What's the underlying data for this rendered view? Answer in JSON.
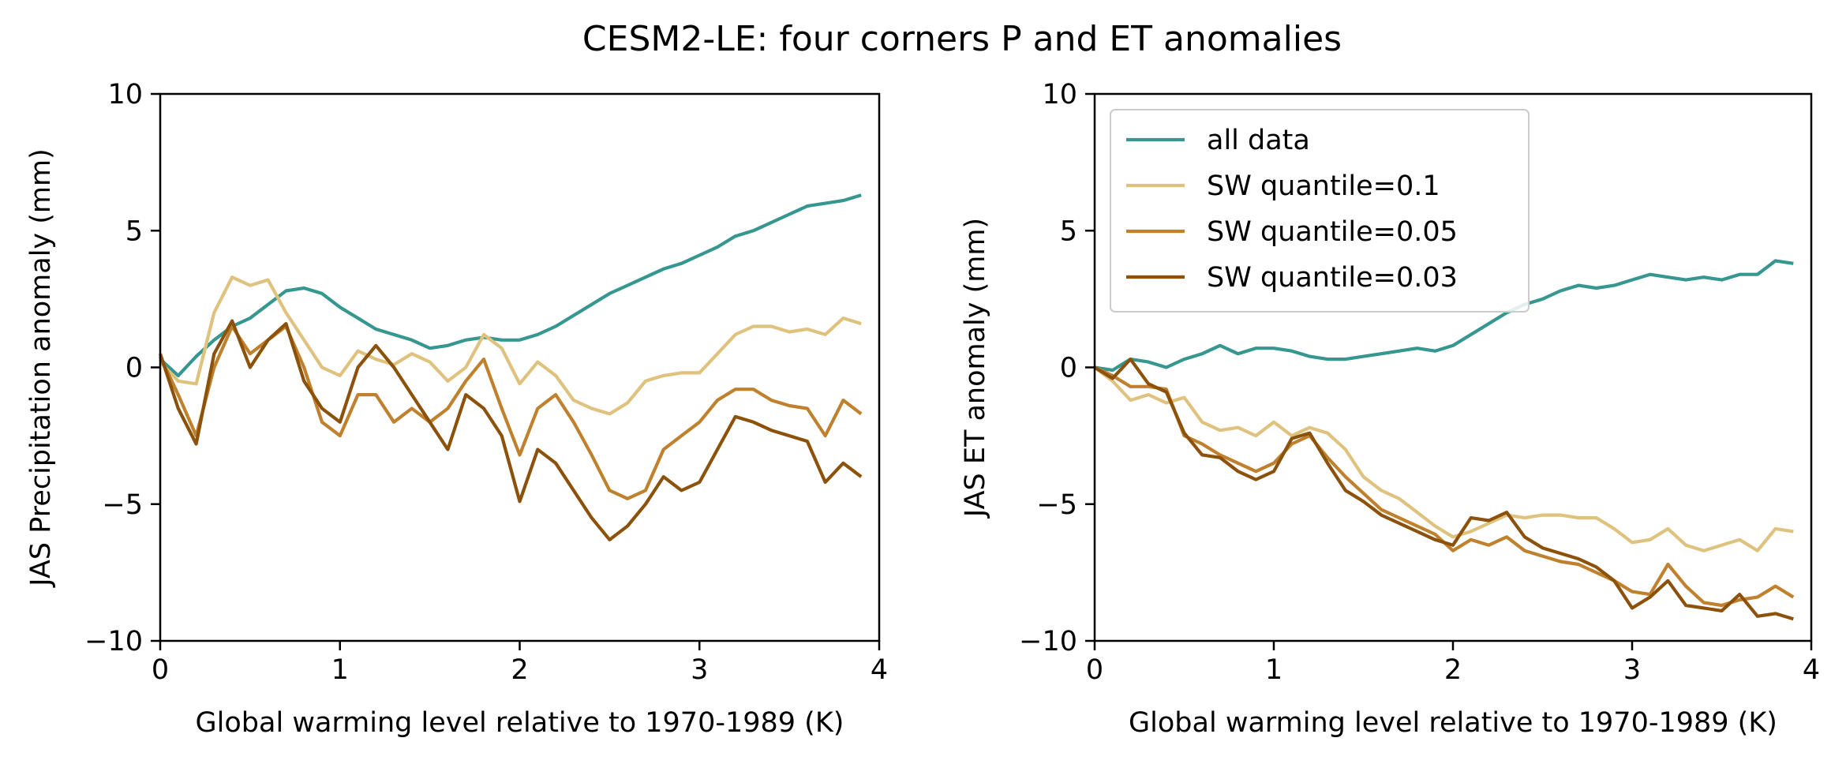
{
  "figure": {
    "suptitle": "CESM2-LE: four corners P and ET anomalies"
  },
  "colors": {
    "all_data": "#35978f",
    "q010": "#dfc27d",
    "q005": "#bf812d",
    "q003": "#8c510a"
  },
  "chart_data": [
    {
      "type": "line",
      "title": "",
      "xlabel": "Global warming level relative to 1970-1989 (K)",
      "ylabel": "JAS Precipitation anomaly (mm)",
      "xlim": [
        0,
        4
      ],
      "ylim": [
        -10,
        10
      ],
      "xticks": [
        "0",
        "1",
        "2",
        "3",
        "4"
      ],
      "yticks": [
        "−10",
        "−5",
        "0",
        "5",
        "10"
      ],
      "xtick_values": [
        0,
        1,
        2,
        3,
        4
      ],
      "ytick_values": [
        -10,
        -5,
        0,
        5,
        10
      ],
      "grid": false,
      "legend": null,
      "series": [
        {
          "name": "all data",
          "color": "#35978f",
          "x": [
            0.0,
            0.1,
            0.2,
            0.3,
            0.4,
            0.5,
            0.6,
            0.7,
            0.8,
            0.9,
            1.0,
            1.1,
            1.2,
            1.3,
            1.4,
            1.5,
            1.6,
            1.7,
            1.8,
            1.9,
            2.0,
            2.1,
            2.2,
            2.3,
            2.4,
            2.5,
            2.6,
            2.7,
            2.8,
            2.9,
            3.0,
            3.1,
            3.2,
            3.3,
            3.4,
            3.5,
            3.6,
            3.7,
            3.8,
            3.9
          ],
          "y": [
            0.3,
            -0.3,
            0.4,
            1.0,
            1.5,
            1.8,
            2.3,
            2.8,
            2.9,
            2.7,
            2.2,
            1.8,
            1.4,
            1.2,
            1.0,
            0.7,
            0.8,
            1.0,
            1.1,
            1.0,
            1.0,
            1.2,
            1.5,
            1.9,
            2.3,
            2.7,
            3.0,
            3.3,
            3.6,
            3.8,
            4.1,
            4.4,
            4.8,
            5.0,
            5.3,
            5.6,
            5.9,
            6.0,
            6.1,
            6.3
          ]
        },
        {
          "name": "SW quantile=0.1",
          "color": "#dfc27d",
          "x": [
            0.0,
            0.1,
            0.2,
            0.3,
            0.4,
            0.5,
            0.6,
            0.7,
            0.8,
            0.9,
            1.0,
            1.1,
            1.2,
            1.3,
            1.4,
            1.5,
            1.6,
            1.7,
            1.8,
            1.9,
            2.0,
            2.1,
            2.2,
            2.3,
            2.4,
            2.5,
            2.6,
            2.7,
            2.8,
            2.9,
            3.0,
            3.1,
            3.2,
            3.3,
            3.4,
            3.5,
            3.6,
            3.7,
            3.8,
            3.9
          ],
          "y": [
            0.2,
            -0.5,
            -0.6,
            2.0,
            3.3,
            3.0,
            3.2,
            2.0,
            1.0,
            0.0,
            -0.3,
            0.6,
            0.3,
            0.1,
            0.5,
            0.2,
            -0.5,
            0.0,
            1.2,
            0.7,
            -0.6,
            0.2,
            -0.3,
            -1.2,
            -1.5,
            -1.7,
            -1.3,
            -0.5,
            -0.3,
            -0.2,
            -0.2,
            0.5,
            1.2,
            1.5,
            1.5,
            1.3,
            1.4,
            1.2,
            1.8,
            1.6
          ]
        },
        {
          "name": "SW quantile=0.05",
          "color": "#bf812d",
          "x": [
            0.0,
            0.1,
            0.2,
            0.3,
            0.4,
            0.5,
            0.6,
            0.7,
            0.8,
            0.9,
            1.0,
            1.1,
            1.2,
            1.3,
            1.4,
            1.5,
            1.6,
            1.7,
            1.8,
            1.9,
            2.0,
            2.1,
            2.2,
            2.3,
            2.4,
            2.5,
            2.6,
            2.7,
            2.8,
            2.9,
            3.0,
            3.1,
            3.2,
            3.3,
            3.4,
            3.5,
            3.6,
            3.7,
            3.8,
            3.9
          ],
          "y": [
            0.4,
            -1.0,
            -2.5,
            0.0,
            1.5,
            0.5,
            1.0,
            1.5,
            0.0,
            -2.0,
            -2.5,
            -1.0,
            -1.0,
            -2.0,
            -1.5,
            -2.0,
            -1.5,
            -0.5,
            0.3,
            -1.5,
            -3.2,
            -1.5,
            -1.0,
            -2.0,
            -3.2,
            -4.5,
            -4.8,
            -4.5,
            -3.0,
            -2.5,
            -2.0,
            -1.2,
            -0.8,
            -0.8,
            -1.2,
            -1.4,
            -1.5,
            -2.5,
            -1.2,
            -1.7
          ]
        },
        {
          "name": "SW quantile=0.03",
          "color": "#8c510a",
          "x": [
            0.0,
            0.1,
            0.2,
            0.3,
            0.4,
            0.5,
            0.6,
            0.7,
            0.8,
            0.9,
            1.0,
            1.1,
            1.2,
            1.3,
            1.4,
            1.5,
            1.6,
            1.7,
            1.8,
            1.9,
            2.0,
            2.1,
            2.2,
            2.3,
            2.4,
            2.5,
            2.6,
            2.7,
            2.8,
            2.9,
            3.0,
            3.1,
            3.2,
            3.3,
            3.4,
            3.5,
            3.6,
            3.7,
            3.8,
            3.9
          ],
          "y": [
            0.5,
            -1.5,
            -2.8,
            0.5,
            1.7,
            0.0,
            1.0,
            1.6,
            -0.5,
            -1.5,
            -2.0,
            0.0,
            0.8,
            0.0,
            -1.0,
            -2.0,
            -3.0,
            -1.0,
            -1.5,
            -2.5,
            -4.9,
            -3.0,
            -3.5,
            -4.5,
            -5.5,
            -6.3,
            -5.8,
            -5.0,
            -4.0,
            -4.5,
            -4.2,
            -3.0,
            -1.8,
            -2.0,
            -2.3,
            -2.5,
            -2.7,
            -4.2,
            -3.5,
            -4.0
          ]
        }
      ]
    },
    {
      "type": "line",
      "title": "",
      "xlabel": "Global warming level relative to 1970-1989 (K)",
      "ylabel": "JAS ET anomaly (mm)",
      "xlim": [
        0,
        4
      ],
      "ylim": [
        -10,
        10
      ],
      "xticks": [
        "0",
        "1",
        "2",
        "3",
        "4"
      ],
      "yticks": [
        "−10",
        "−5",
        "0",
        "5",
        "10"
      ],
      "xtick_values": [
        0,
        1,
        2,
        3,
        4
      ],
      "ytick_values": [
        -10,
        -5,
        0,
        5,
        10
      ],
      "grid": false,
      "legend": "upper left",
      "series": [
        {
          "name": "all data",
          "color": "#35978f",
          "x": [
            0.0,
            0.1,
            0.2,
            0.3,
            0.4,
            0.5,
            0.6,
            0.7,
            0.8,
            0.9,
            1.0,
            1.1,
            1.2,
            1.3,
            1.4,
            1.5,
            1.6,
            1.7,
            1.8,
            1.9,
            2.0,
            2.1,
            2.2,
            2.3,
            2.4,
            2.5,
            2.6,
            2.7,
            2.8,
            2.9,
            3.0,
            3.1,
            3.2,
            3.3,
            3.4,
            3.5,
            3.6,
            3.7,
            3.8,
            3.9
          ],
          "y": [
            0.0,
            -0.1,
            0.3,
            0.2,
            0.0,
            0.3,
            0.5,
            0.8,
            0.5,
            0.7,
            0.7,
            0.6,
            0.4,
            0.3,
            0.3,
            0.4,
            0.5,
            0.6,
            0.7,
            0.6,
            0.8,
            1.2,
            1.6,
            2.0,
            2.3,
            2.5,
            2.8,
            3.0,
            2.9,
            3.0,
            3.2,
            3.4,
            3.3,
            3.2,
            3.3,
            3.2,
            3.4,
            3.4,
            3.9,
            3.8
          ]
        },
        {
          "name": "SW quantile=0.1",
          "color": "#dfc27d",
          "x": [
            0.0,
            0.1,
            0.2,
            0.3,
            0.4,
            0.5,
            0.6,
            0.7,
            0.8,
            0.9,
            1.0,
            1.1,
            1.2,
            1.3,
            1.4,
            1.5,
            1.6,
            1.7,
            1.8,
            1.9,
            2.0,
            2.1,
            2.2,
            2.3,
            2.4,
            2.5,
            2.6,
            2.7,
            2.8,
            2.9,
            3.0,
            3.1,
            3.2,
            3.3,
            3.4,
            3.5,
            3.6,
            3.7,
            3.8,
            3.9
          ],
          "y": [
            0.0,
            -0.5,
            -1.2,
            -1.0,
            -1.3,
            -1.1,
            -2.0,
            -2.3,
            -2.2,
            -2.5,
            -2.0,
            -2.5,
            -2.2,
            -2.4,
            -3.0,
            -4.0,
            -4.5,
            -4.8,
            -5.3,
            -5.8,
            -6.2,
            -6.0,
            -5.7,
            -5.4,
            -5.5,
            -5.4,
            -5.4,
            -5.5,
            -5.5,
            -5.9,
            -6.4,
            -6.3,
            -5.9,
            -6.5,
            -6.7,
            -6.5,
            -6.3,
            -6.7,
            -5.9,
            -6.0
          ]
        },
        {
          "name": "SW quantile=0.05",
          "color": "#bf812d",
          "x": [
            0.0,
            0.1,
            0.2,
            0.3,
            0.4,
            0.5,
            0.6,
            0.7,
            0.8,
            0.9,
            1.0,
            1.1,
            1.2,
            1.3,
            1.4,
            1.5,
            1.6,
            1.7,
            1.8,
            1.9,
            2.0,
            2.1,
            2.2,
            2.3,
            2.4,
            2.5,
            2.6,
            2.7,
            2.8,
            2.9,
            3.0,
            3.1,
            3.2,
            3.3,
            3.4,
            3.5,
            3.6,
            3.7,
            3.8,
            3.9
          ],
          "y": [
            0.0,
            -0.3,
            -0.7,
            -0.7,
            -0.8,
            -2.5,
            -2.8,
            -3.2,
            -3.5,
            -3.8,
            -3.5,
            -2.8,
            -2.5,
            -3.3,
            -4.0,
            -4.6,
            -5.2,
            -5.5,
            -5.8,
            -6.1,
            -6.7,
            -6.3,
            -6.5,
            -6.2,
            -6.7,
            -6.9,
            -7.1,
            -7.2,
            -7.5,
            -7.8,
            -8.2,
            -8.3,
            -7.2,
            -8.0,
            -8.6,
            -8.7,
            -8.5,
            -8.4,
            -8.0,
            -8.4
          ]
        },
        {
          "name": "SW quantile=0.03",
          "color": "#8c510a",
          "x": [
            0.0,
            0.1,
            0.2,
            0.3,
            0.4,
            0.5,
            0.6,
            0.7,
            0.8,
            0.9,
            1.0,
            1.1,
            1.2,
            1.3,
            1.4,
            1.5,
            1.6,
            1.7,
            1.8,
            1.9,
            2.0,
            2.1,
            2.2,
            2.3,
            2.4,
            2.5,
            2.6,
            2.7,
            2.8,
            2.9,
            3.0,
            3.1,
            3.2,
            3.3,
            3.4,
            3.5,
            3.6,
            3.7,
            3.8,
            3.9
          ],
          "y": [
            0.0,
            -0.4,
            0.3,
            -0.6,
            -0.9,
            -2.4,
            -3.2,
            -3.3,
            -3.8,
            -4.1,
            -3.8,
            -2.6,
            -2.4,
            -3.5,
            -4.5,
            -4.9,
            -5.4,
            -5.7,
            -6.0,
            -6.3,
            -6.5,
            -5.5,
            -5.6,
            -5.3,
            -6.2,
            -6.6,
            -6.8,
            -7.0,
            -7.3,
            -7.8,
            -8.8,
            -8.4,
            -7.8,
            -8.7,
            -8.8,
            -8.9,
            -8.3,
            -9.1,
            -9.0,
            -9.2
          ]
        }
      ]
    }
  ]
}
